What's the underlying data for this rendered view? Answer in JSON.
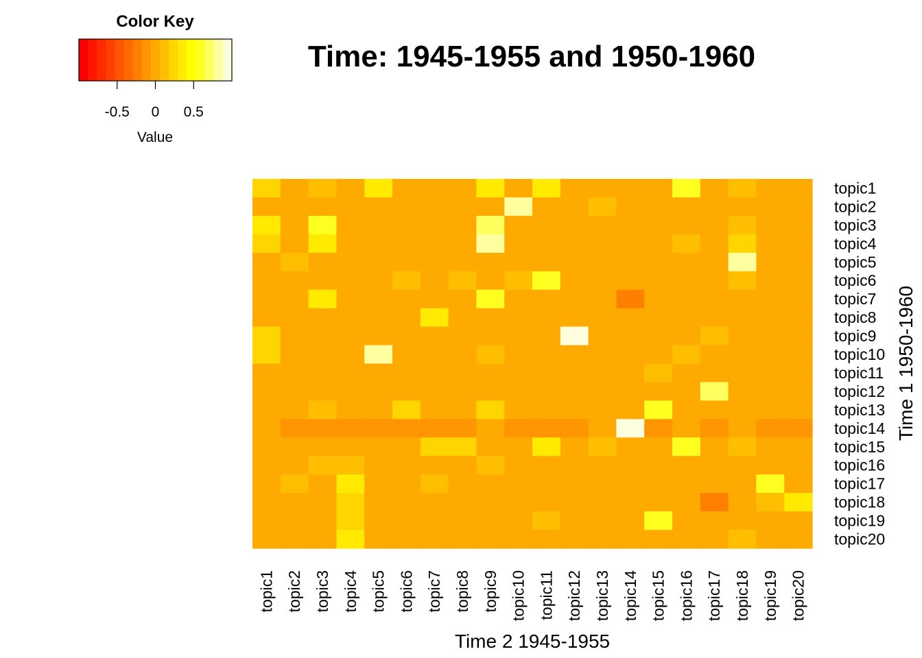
{
  "chart_data": {
    "type": "heatmap",
    "title": "Time: 1945-1955 and 1950-1960",
    "xlabel": "Time 2 1945-1955",
    "ylabel": "Time 1 1950-1960",
    "x_labels": [
      "topic1",
      "topic2",
      "topic3",
      "topic4",
      "topic5",
      "topic6",
      "topic7",
      "topic8",
      "topic9",
      "topic10",
      "topic11",
      "topic12",
      "topic13",
      "topic14",
      "topic15",
      "topic16",
      "topic17",
      "topic18",
      "topic19",
      "topic20"
    ],
    "y_labels": [
      "topic1",
      "topic2",
      "topic3",
      "topic4",
      "topic5",
      "topic6",
      "topic7",
      "topic8",
      "topic9",
      "topic10",
      "topic11",
      "topic12",
      "topic13",
      "topic14",
      "topic15",
      "topic16",
      "topic17",
      "topic18",
      "topic19",
      "topic20"
    ],
    "values": [
      [
        0.2,
        0,
        0.1,
        0,
        0.4,
        0,
        0,
        0,
        0.4,
        0,
        0.4,
        0,
        0,
        0,
        0,
        0.6,
        0,
        0.1,
        0,
        0
      ],
      [
        0,
        0,
        0,
        0,
        0,
        0,
        0,
        0,
        0,
        0.8,
        0,
        0,
        0.1,
        0,
        0,
        0,
        0,
        0,
        0,
        0
      ],
      [
        0.4,
        0,
        0.6,
        0,
        0,
        0,
        0,
        0,
        0.7,
        0,
        0,
        0,
        0,
        0,
        0,
        0,
        0,
        0.1,
        0,
        0
      ],
      [
        0.2,
        0,
        0.3,
        0,
        0,
        0,
        0,
        0,
        0.8,
        0,
        0,
        0,
        0,
        0,
        0,
        0.1,
        0,
        0.2,
        0,
        0
      ],
      [
        0,
        0.1,
        0,
        0,
        0,
        0,
        0,
        0,
        0,
        0,
        0,
        0,
        0,
        0,
        0,
        0,
        0,
        0.8,
        0,
        0
      ],
      [
        0,
        0,
        0,
        0,
        0,
        0.1,
        0,
        0.1,
        0,
        0.1,
        0.6,
        0,
        0,
        0,
        0,
        0,
        0,
        0.1,
        0,
        0
      ],
      [
        0,
        0,
        0.3,
        0,
        0,
        0,
        0,
        0,
        0.6,
        0,
        0,
        0,
        0,
        -0.2,
        0,
        0,
        0,
        0,
        0,
        0
      ],
      [
        0,
        0,
        0,
        0,
        0,
        0,
        0.4,
        0,
        0,
        0,
        0,
        0,
        0,
        0,
        0,
        0,
        0,
        0,
        0,
        0
      ],
      [
        0.2,
        0,
        0,
        0,
        0,
        0,
        0,
        0,
        0,
        0,
        0,
        0.95,
        0,
        0,
        0,
        0,
        0.1,
        0,
        0,
        0
      ],
      [
        0.2,
        0,
        0,
        0,
        0.8,
        0,
        0,
        0,
        0.1,
        0,
        0,
        0,
        0,
        0,
        0,
        0.1,
        0,
        0,
        0,
        0
      ],
      [
        0,
        0,
        0,
        0,
        0,
        0,
        0,
        0,
        0,
        0,
        0,
        0,
        0,
        0,
        0.1,
        0,
        0,
        0,
        0,
        0
      ],
      [
        0,
        0,
        0,
        0,
        0,
        0,
        0,
        0,
        0,
        0,
        0,
        0,
        0,
        0,
        0,
        0,
        0.7,
        0,
        0,
        0
      ],
      [
        0,
        0,
        0.1,
        0,
        0,
        0.2,
        0,
        0,
        0.2,
        0,
        0,
        0,
        0,
        0,
        0.6,
        0,
        0,
        0,
        0,
        0
      ],
      [
        0,
        -0.1,
        -0.1,
        -0.1,
        -0.1,
        -0.1,
        -0.1,
        -0.1,
        0,
        -0.1,
        -0.1,
        -0.1,
        0,
        0.95,
        -0.1,
        0,
        -0.1,
        0,
        -0.1,
        -0.1
      ],
      [
        0,
        0,
        0,
        0,
        0,
        0,
        0.2,
        0.2,
        0,
        0,
        0.4,
        0,
        0.1,
        0,
        0,
        0.6,
        0,
        0.1,
        0,
        0
      ],
      [
        0,
        0,
        0.1,
        0.1,
        0,
        0,
        0,
        0,
        0.1,
        0,
        0,
        0,
        0,
        0,
        0,
        0,
        0,
        0,
        0,
        0
      ],
      [
        0,
        0.1,
        0,
        0.4,
        0,
        0,
        0.1,
        0,
        0,
        0,
        0,
        0,
        0,
        0,
        0,
        0,
        0,
        0,
        0.6,
        0
      ],
      [
        0,
        0,
        0,
        0.2,
        0,
        0,
        0,
        0,
        0,
        0,
        0,
        0,
        0,
        0,
        0,
        0,
        -0.2,
        0,
        0.1,
        0.4
      ],
      [
        0,
        0,
        0,
        0.2,
        0,
        0,
        0,
        0,
        0,
        0,
        0.1,
        0,
        0,
        0,
        0.6,
        0,
        0,
        0,
        0,
        0
      ],
      [
        0,
        0,
        0,
        0.4,
        0,
        0,
        0,
        0,
        0,
        0,
        0,
        0,
        0,
        0,
        0,
        0,
        0,
        0.1,
        0,
        0
      ]
    ],
    "zlim": [
      -1,
      1
    ],
    "color_key": {
      "title": "Color Key",
      "label": "Value",
      "ticks": [
        "-0.5",
        "0",
        "0.5"
      ],
      "tick_values": [
        -0.5,
        0,
        0.5
      ],
      "colors": [
        "#FF0000",
        "#FF1500",
        "#FF2A00",
        "#FF4000",
        "#FF5500",
        "#FF6A00",
        "#FF8000",
        "#FF9500",
        "#FFAA00",
        "#FFBF00",
        "#FFD500",
        "#FFEA00",
        "#FFFF00",
        "#FFFF20",
        "#FFFF60",
        "#FFFF9F",
        "#FFFFDF"
      ]
    }
  }
}
